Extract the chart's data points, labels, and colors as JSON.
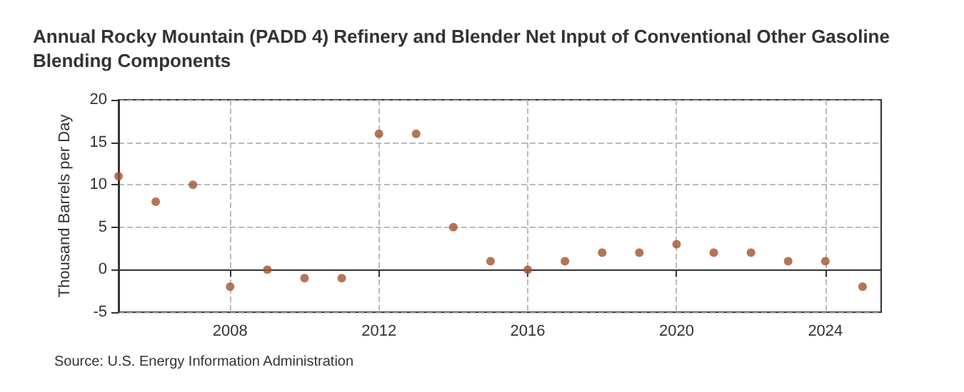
{
  "chart_data": {
    "type": "scatter",
    "title": "Annual Rocky Mountain (PADD 4) Refinery and Blender Net Input of Conventional Other Gasoline Blending Components",
    "ylabel": "Thousand Barrels per Day",
    "x": [
      2005,
      2006,
      2007,
      2008,
      2009,
      2010,
      2011,
      2012,
      2013,
      2014,
      2015,
      2016,
      2017,
      2018,
      2019,
      2020,
      2021,
      2022,
      2023,
      2024,
      2025
    ],
    "series": [
      {
        "color": "#a0522d",
        "values": [
          11,
          8,
          10,
          -2,
          0,
          -1,
          -1,
          16,
          16,
          5,
          1,
          0,
          1,
          2,
          2,
          3,
          2,
          2,
          1,
          1,
          -2
        ]
      }
    ],
    "xlim": [
      2005,
      2025.5
    ],
    "xticks": [
      2008,
      2012,
      2016,
      2020,
      2024
    ],
    "ylim": [
      -5,
      20
    ],
    "yticks": [
      -5,
      0,
      5,
      10,
      15,
      20
    ],
    "grid": true,
    "marker": "circle",
    "annotations": [
      "Source: U.S. Energy Information Administration"
    ]
  }
}
